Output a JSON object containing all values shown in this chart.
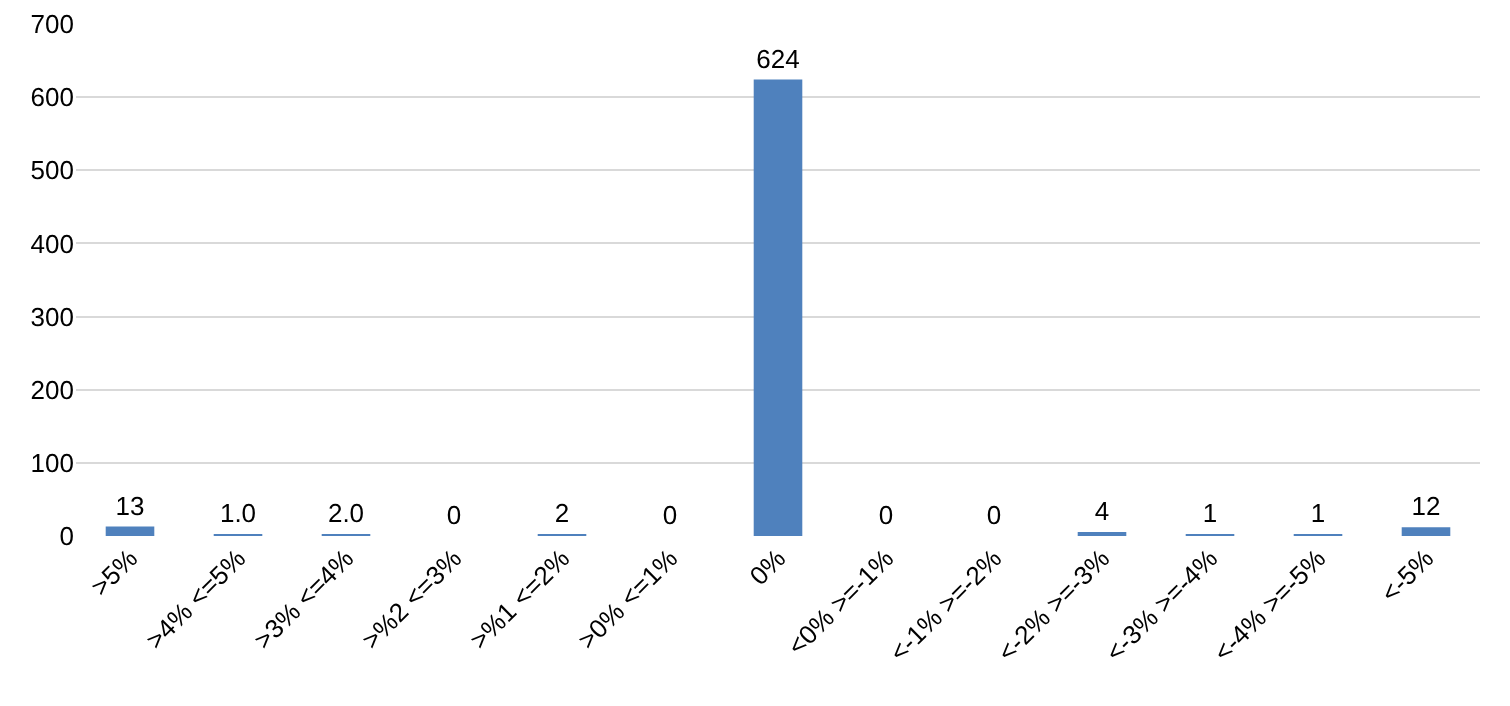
{
  "chart_data": {
    "type": "bar",
    "categories": [
      ">5%",
      ">4% <=5%",
      ">3% <=4%",
      ">%2 <=3%",
      ">%1 <=2%",
      ">0% <=1%",
      "0%",
      "<0% >=-1%",
      "<-1% >=-2%",
      "<-2% >=-3%",
      "<-3% >=-4%",
      "<-4% >=-5%",
      "<-5%"
    ],
    "values": [
      13,
      1,
      2,
      0,
      2,
      0,
      624,
      0,
      0,
      4,
      1,
      1,
      12
    ],
    "value_labels": [
      "13",
      "1.0",
      "2.0",
      "0",
      "2",
      "0",
      "624",
      "0",
      "0",
      "4",
      "1",
      "1",
      "12"
    ],
    "color": "#4f81bd",
    "ylim": [
      0,
      700
    ],
    "yticks": [
      0,
      100,
      200,
      300,
      400,
      500,
      600,
      700
    ],
    "grid": "y",
    "legend": false
  }
}
